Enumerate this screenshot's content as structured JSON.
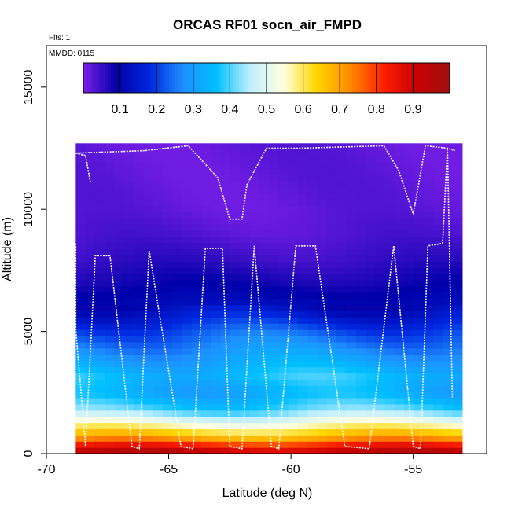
{
  "chart_data": {
    "type": "heatmap",
    "title": "ORCAS RF01 socn_air_FMPD",
    "annotations": [
      "Flts: 1",
      "MMDD: 0115"
    ],
    "xlabel": "Latitude (deg N)",
    "ylabel": "Altitude (m)",
    "xlim": [
      -70,
      -52
    ],
    "ylim": [
      0,
      16700
    ],
    "x_ticks": [
      -70,
      -65,
      -60,
      -55
    ],
    "y_ticks": [
      0,
      5000,
      10000,
      15000
    ],
    "grid": false,
    "colorbar": {
      "range": [
        0,
        1
      ],
      "ticks": [
        0.1,
        0.2,
        0.3,
        0.4,
        0.5,
        0.6,
        0.7,
        0.8,
        0.9
      ],
      "colors": [
        "#7B1FE8",
        "#0000A8",
        "#0028E0",
        "#1E90FF",
        "#00BFFF",
        "#BFEFFF",
        "#FFFFE0",
        "#FFD700",
        "#FF8C00",
        "#FF2000",
        "#C80000",
        "#A01010"
      ]
    },
    "data_coverage": {
      "lat": [
        -68.8,
        -53.0
      ],
      "alt": [
        0,
        12700
      ]
    },
    "field_profile": {
      "altitude_m": [
        0,
        300,
        700,
        1200,
        1800,
        2500,
        3200,
        4000,
        5000,
        6000,
        7000,
        8000,
        9000,
        10000,
        11000,
        12500
      ],
      "value": [
        0.95,
        0.85,
        0.68,
        0.55,
        0.4,
        0.33,
        0.36,
        0.3,
        0.22,
        0.12,
        0.08,
        0.05,
        0.03,
        0.02,
        0.02,
        0.02
      ]
    },
    "flight_track": {
      "lat": [
        -68.8,
        -68.8,
        -68.4,
        -68.0,
        -67.4,
        -66.5,
        -66.2,
        -65.8,
        -64.5,
        -64.0,
        -63.5,
        -62.8,
        -62.5,
        -62.0,
        -61.5,
        -60.8,
        -60.5,
        -59.8,
        -59.0,
        -57.8,
        -56.8,
        -55.8,
        -55.0,
        -54.7,
        -54.4,
        -53.8,
        -53.6,
        -53.4
      ],
      "alt_m": [
        8600,
        5100,
        300,
        8100,
        8100,
        300,
        200,
        8300,
        300,
        200,
        8400,
        8400,
        300,
        200,
        8500,
        300,
        200,
        8500,
        8500,
        300,
        200,
        8500,
        300,
        200,
        8500,
        8600,
        12500,
        2300
      ]
    },
    "upper_track": {
      "lat": [
        -68.2,
        -68.4,
        -68.8,
        -66.0,
        -64.2,
        -63.0,
        -62.5,
        -62.0,
        -61.8,
        -61.0,
        -59.6,
        -56.2,
        -55.6,
        -55.0,
        -54.5,
        -53.6,
        -53.3
      ],
      "alt_m": [
        11100,
        12200,
        12300,
        12400,
        12600,
        11300,
        9600,
        9600,
        11000,
        12500,
        12500,
        12600,
        11600,
        9800,
        12600,
        12500,
        12400
      ]
    }
  }
}
